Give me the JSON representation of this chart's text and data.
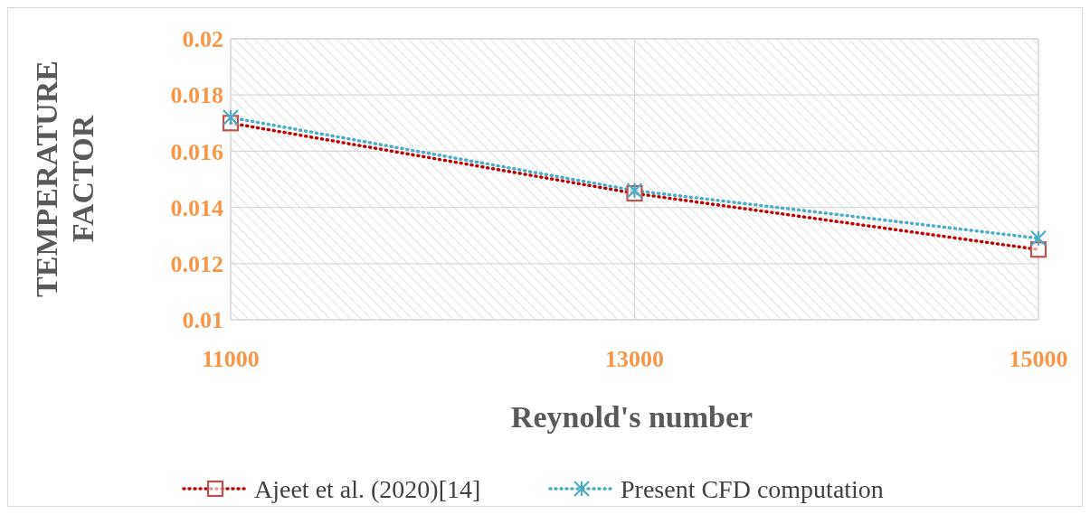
{
  "chart_data": {
    "type": "line",
    "xlabel": "Reynold's number",
    "ylabel": "TEMPERATURE FACTOR",
    "x": [
      11000,
      13000,
      15000
    ],
    "series": [
      {
        "name": "Ajeet et al. (2020)[14]",
        "color": "#c00000",
        "values": [
          0.017,
          0.0145,
          0.0125
        ],
        "marker": "square"
      },
      {
        "name": "Present CFD computation",
        "color": "#4bacc6",
        "values": [
          0.0172,
          0.0146,
          0.0129
        ],
        "marker": "cross"
      }
    ],
    "xlim": [
      11000,
      15000
    ],
    "xticks": [
      11000,
      13000,
      15000
    ],
    "ylim": [
      0.01,
      0.02
    ],
    "yticks": [
      0.01,
      0.012,
      0.014,
      0.016,
      0.018,
      0.02
    ],
    "grid": true,
    "legend": "bottom",
    "line_style": "dotted"
  }
}
